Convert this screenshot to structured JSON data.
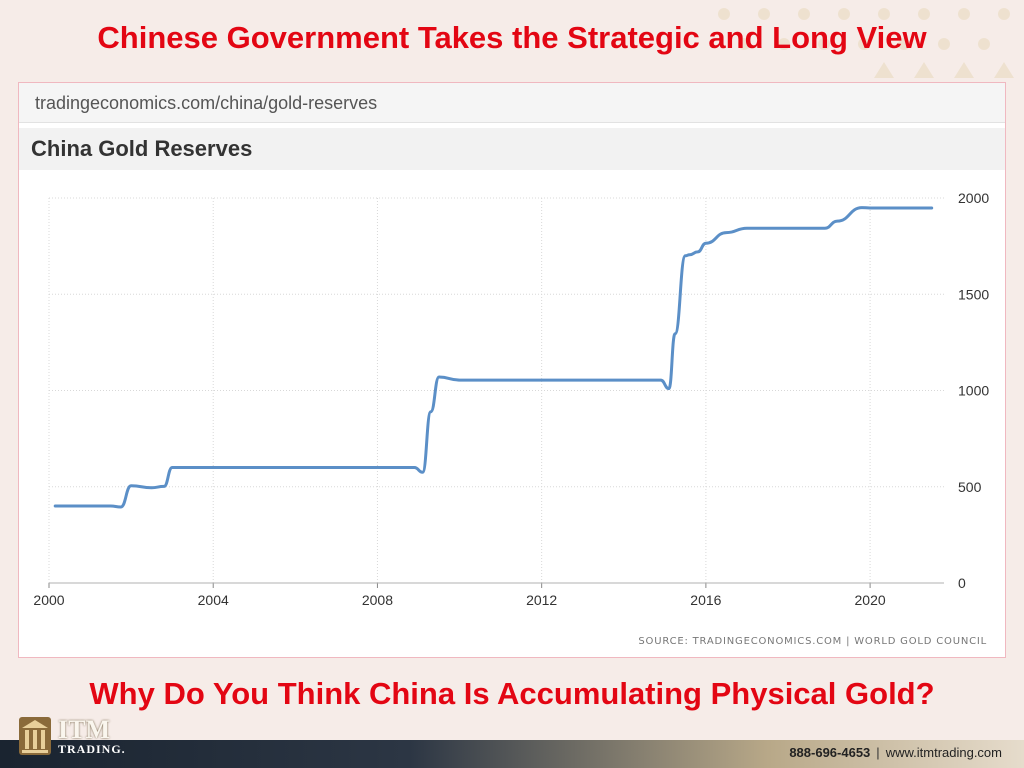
{
  "slide": {
    "headline_top": "Chinese Government Takes the Strategic and Long View",
    "headline_bottom": "Why Do You Think China Is Accumulating Physical Gold?",
    "url": "tradingeconomics.com/china/gold-reserves",
    "accent_color": "#e30613"
  },
  "chart_data": {
    "type": "line",
    "title": "China Gold Reserves",
    "xlabel": "",
    "ylabel": "",
    "xlim": [
      2000,
      2021.8
    ],
    "ylim": [
      0,
      2000
    ],
    "x_ticks": [
      2000,
      2004,
      2008,
      2012,
      2016,
      2020
    ],
    "y_ticks": [
      0,
      500,
      1000,
      1500,
      2000
    ],
    "y_axis_side": "right",
    "grid": true,
    "line_color": "#5b8fc7",
    "series": [
      {
        "name": "",
        "x": [
          2000.15,
          2001.5,
          2001.75,
          2002.0,
          2002.5,
          2002.8,
          2003.0,
          2004.0,
          2006.0,
          2008.0,
          2008.9,
          2009.1,
          2009.3,
          2009.5,
          2010.0,
          2012.0,
          2014.0,
          2014.9,
          2015.1,
          2015.25,
          2015.5,
          2015.6,
          2015.8,
          2016.0,
          2016.5,
          2017.0,
          2018.0,
          2018.9,
          2019.2,
          2019.8,
          2020.0,
          2021.5
        ],
        "values": [
          400,
          400,
          395,
          505,
          495,
          502,
          600,
          600,
          600,
          600,
          600,
          575,
          890,
          1070,
          1054,
          1054,
          1054,
          1054,
          1010,
          1295,
          1700,
          1705,
          1720,
          1765,
          1820,
          1843,
          1843,
          1843,
          1880,
          1950,
          1948,
          1948
        ]
      }
    ],
    "source": "SOURCE: TRADINGECONOMICS.COM  |  WORLD GOLD COUNCIL"
  },
  "footer": {
    "logo_name": "ITM",
    "logo_sub": "TRADING.",
    "phone": "888-696-4653",
    "separator": "|",
    "website": "www.itmtrading.com",
    "logo_icon": "pillars-icon"
  }
}
